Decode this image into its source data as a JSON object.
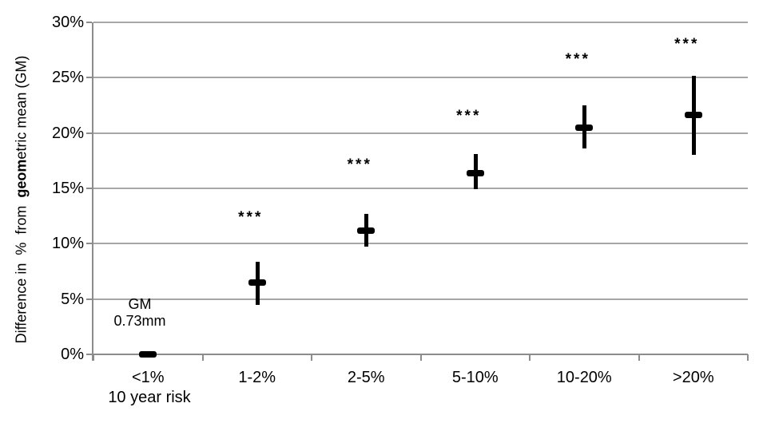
{
  "figure": {
    "y_axis_title_prefix": "Difference in  %  from  ",
    "y_axis_title_bold": "geom",
    "y_axis_title_suffix": "etric mean (GM)",
    "x_axis_title": "10 year risk",
    "gm_annotation_line1": "GM",
    "gm_annotation_line2": "0.73mm"
  },
  "chart_data": {
    "type": "scatter",
    "subtype": "error-bar",
    "title": "",
    "xlabel": "10 year risk",
    "ylabel": "Difference in % from geometric mean (GM)",
    "categories": [
      "<1%",
      "1-2%",
      "2-5%",
      "5-10%",
      "10-20%",
      ">20%"
    ],
    "values": [
      0,
      6.5,
      11.2,
      16.4,
      20.5,
      21.6
    ],
    "ci_low": [
      null,
      4.5,
      9.7,
      14.9,
      18.6,
      18.0
    ],
    "ci_high": [
      null,
      8.4,
      12.7,
      18.1,
      22.5,
      25.2
    ],
    "significance": [
      "",
      "***",
      "***",
      "***",
      "***",
      "***"
    ],
    "sig_label_y": [
      null,
      12.3,
      17.1,
      21.5,
      26.6,
      28.0
    ],
    "annotation": {
      "lines": [
        "GM",
        "0.73mm"
      ],
      "category_index": 0
    },
    "ylim": [
      0,
      30
    ],
    "ytick_step": 5,
    "ytick_labels": [
      "0%",
      "5%",
      "10%",
      "15%",
      "20%",
      "25%",
      "30%"
    ],
    "grid": true,
    "legend": false,
    "colors": {
      "marker": "#000000",
      "error_bar": "#000000",
      "gridline": "#a6a6a6",
      "axis": "#8c8c8c",
      "text": "#000000"
    }
  }
}
